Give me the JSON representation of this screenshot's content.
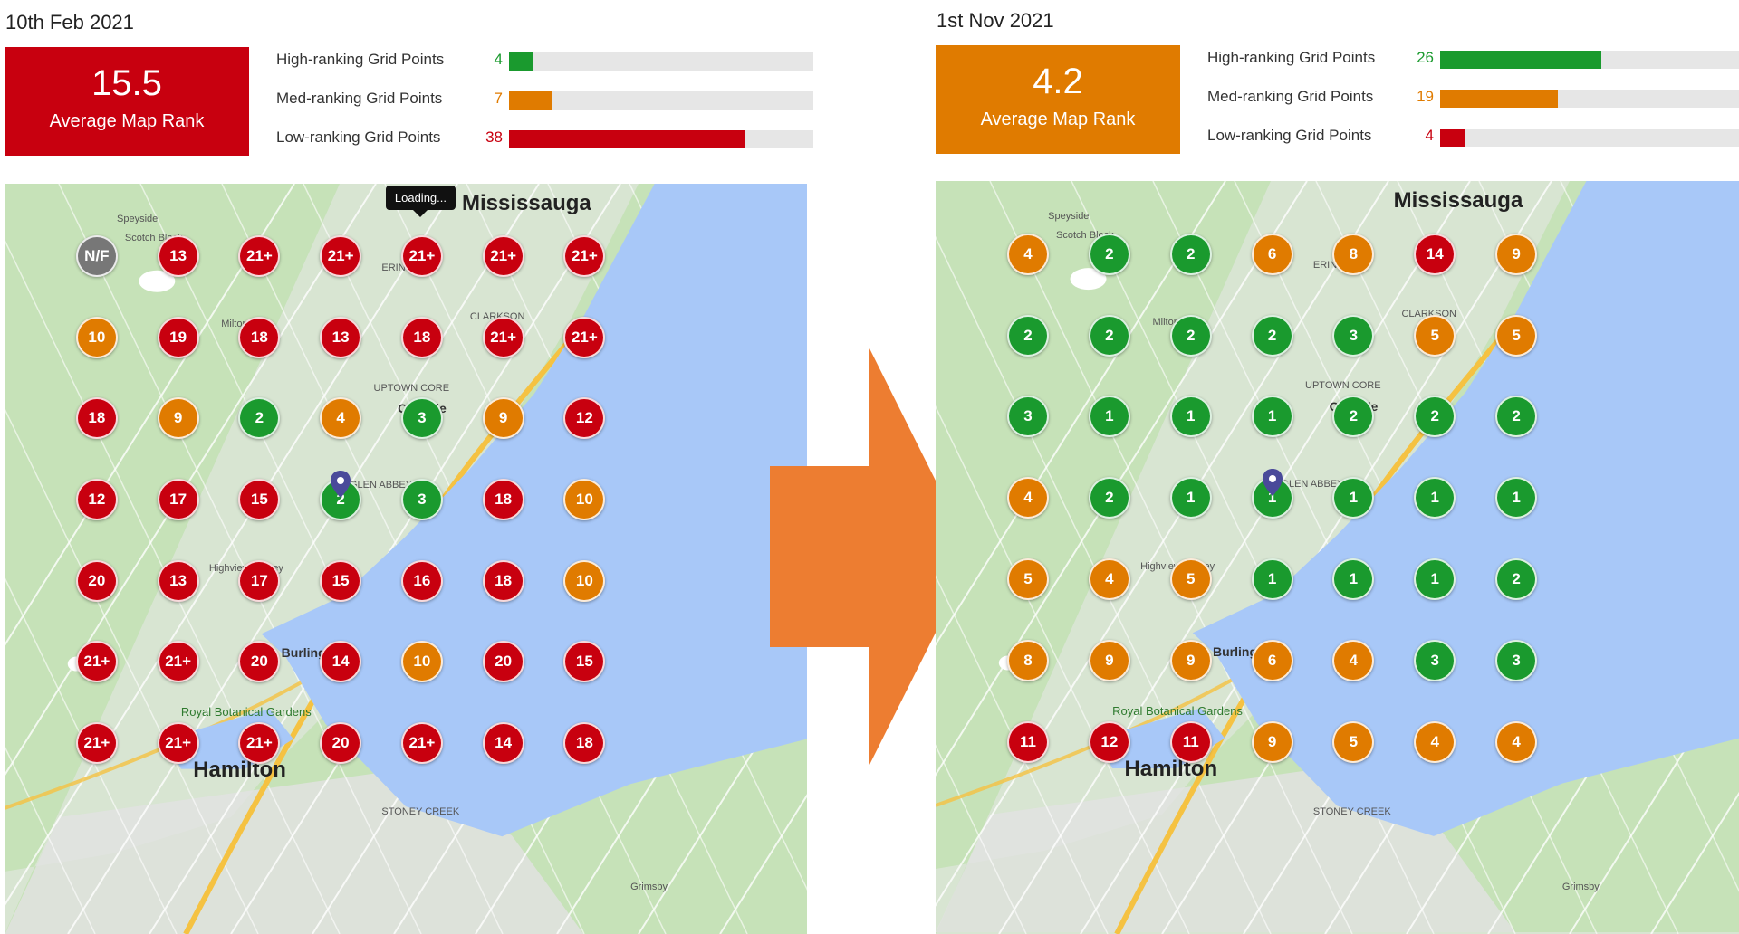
{
  "colors": {
    "high": "#1a9a2e",
    "med": "#e07b00",
    "low": "#c8000f",
    "nf": "#777777",
    "water": "#a8c8f8",
    "arrow": "#ed7d31"
  },
  "legend": {
    "high_label": "High-ranking Grid Points",
    "med_label": "Med-ranking Grid Points",
    "low_label": "Low-ranking Grid Points"
  },
  "places": {
    "mississauga": "Mississauga",
    "oakville": "Oakville",
    "hamilton": "Hamilton",
    "burlington": "Burlington",
    "milton": "Milton",
    "royal_botanical_gardens": "Royal Botanical Gardens",
    "speyside": "Speyside",
    "scotch_block": "Scotch Block",
    "clarkson": "CLARKSON",
    "erin_mills": "ERIN MILLS",
    "uptown_core": "UPTOWN CORE",
    "glen_abbey": "GLEN ABBEY",
    "stoney_creek": "STONEY CREEK",
    "grimsby": "Grimsby",
    "highview_survey": "Highview Survey"
  },
  "before": {
    "date": "10th Feb 2021",
    "average_rank": "15.5",
    "average_label": "Average Map Rank",
    "high_count": 4,
    "med_count": 7,
    "low_count": 38,
    "tooltip": "Loading...",
    "grid": [
      [
        "N/F",
        "13",
        "21+",
        "21+",
        "21+",
        "21+",
        "21+"
      ],
      [
        "10",
        "19",
        "18",
        "13",
        "18",
        "21+",
        "21+"
      ],
      [
        "18",
        "9",
        "2",
        "4",
        "3",
        "9",
        "12"
      ],
      [
        "12",
        "17",
        "15",
        "2",
        "3",
        "18",
        "10"
      ],
      [
        "20",
        "13",
        "17",
        "15",
        "16",
        "18",
        "10"
      ],
      [
        "21+",
        "21+",
        "20",
        "14",
        "10",
        "20",
        "15"
      ],
      [
        "21+",
        "21+",
        "21+",
        "20",
        "21+",
        "14",
        "18"
      ]
    ]
  },
  "after": {
    "date": "1st Nov 2021",
    "average_rank": "4.2",
    "average_label": "Average Map Rank",
    "high_count": 26,
    "med_count": 19,
    "low_count": 4,
    "grid": [
      [
        "4",
        "2",
        "2",
        "6",
        "8",
        "14",
        "9"
      ],
      [
        "2",
        "2",
        "2",
        "2",
        "3",
        "5",
        "5"
      ],
      [
        "3",
        "1",
        "1",
        "1",
        "2",
        "2",
        "2"
      ],
      [
        "4",
        "2",
        "1",
        "1",
        "1",
        "1",
        "1"
      ],
      [
        "5",
        "4",
        "5",
        "1",
        "1",
        "1",
        "2"
      ],
      [
        "8",
        "9",
        "9",
        "6",
        "4",
        "3",
        "3"
      ],
      [
        "11",
        "12",
        "11",
        "9",
        "5",
        "4",
        "4"
      ]
    ]
  }
}
